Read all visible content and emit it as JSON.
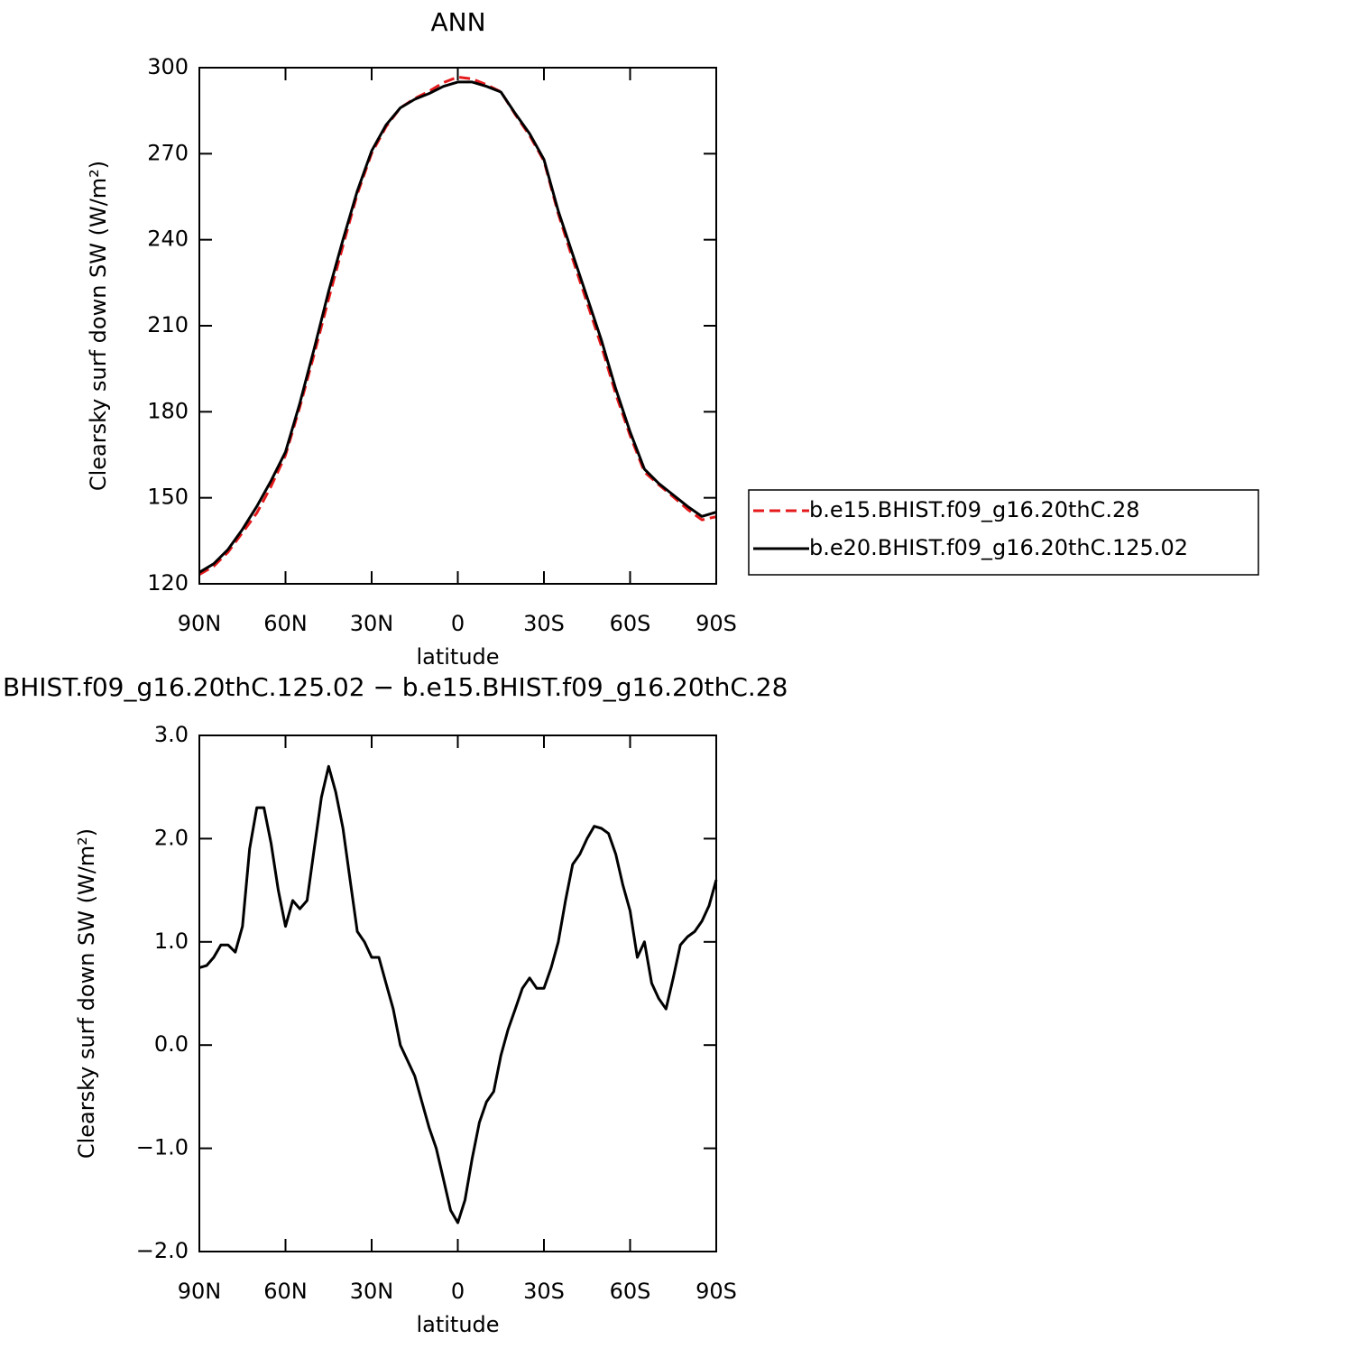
{
  "chart_data": [
    {
      "type": "line",
      "title": "ANN",
      "xlabel": "latitude",
      "ylabel": "Clearsky surf down SW (W/m²)",
      "x": [
        90,
        85,
        80,
        75,
        70,
        65,
        60,
        55,
        50,
        45,
        40,
        35,
        30,
        25,
        20,
        15,
        10,
        5,
        0,
        -5,
        -10,
        -15,
        -20,
        -25,
        -30,
        -35,
        -40,
        -45,
        -50,
        -55,
        -60,
        -65,
        -70,
        -75,
        -80,
        -85,
        -90
      ],
      "series": [
        {
          "name": "b.e15.BHIST.f09_g16.20thC.28",
          "color": "#e41a1c",
          "dash": true,
          "values": [
            123.25,
            126.15,
            131.03,
            137.85,
            144.7,
            154.05,
            164.85,
            181.68,
            200.1,
            219.3,
            237.9,
            255.9,
            270.15,
            279.4,
            286,
            289.3,
            291.8,
            294.8,
            296.72,
            296.1,
            294.05,
            291.6,
            283.65,
            276.35,
            267.45,
            249,
            233.25,
            218,
            202.9,
            186.15,
            171.7,
            159,
            154.55,
            150.35,
            145.95,
            142.3,
            143.4
          ]
        },
        {
          "name": "b.e20.BHIST.f09_g16.20thC.125.02",
          "color": "#000000",
          "dash": false,
          "values": [
            124,
            127,
            132,
            139,
            147,
            156,
            166,
            183,
            202,
            222,
            240,
            257,
            271,
            280,
            286,
            289,
            291,
            293.5,
            295,
            295,
            293.5,
            291.5,
            284,
            277,
            268,
            250,
            235,
            220,
            205,
            188,
            173,
            160,
            155,
            151,
            147,
            143.5,
            145
          ]
        }
      ],
      "xlim": [
        90,
        -90
      ],
      "xticks": [
        {
          "value": 90,
          "label": "90N"
        },
        {
          "value": 60,
          "label": "60N"
        },
        {
          "value": 30,
          "label": "30N"
        },
        0,
        {
          "value": -30,
          "label": "30S"
        },
        {
          "value": -60,
          "label": "60S"
        },
        {
          "value": -90,
          "label": "90S"
        }
      ],
      "ylim": [
        120,
        300
      ],
      "yticks": [
        120,
        150,
        180,
        210,
        240,
        270,
        300
      ],
      "legend": "right"
    },
    {
      "type": "line",
      "title": "BHIST.f09_g16.20thC.125.02 − b.e15.BHIST.f09_g16.20thC.28",
      "xlabel": "latitude",
      "ylabel": "Clearsky surf down SW (W/m²)",
      "x": [
        90,
        87.5,
        85,
        82.5,
        80,
        77.5,
        75,
        72.5,
        70,
        67.5,
        65,
        62.5,
        60,
        57.5,
        55,
        52.5,
        50,
        47.5,
        45,
        42.5,
        40,
        37.5,
        35,
        32.5,
        30,
        27.5,
        25,
        22.5,
        20,
        17.5,
        15,
        12.5,
        10,
        7.5,
        5,
        2.5,
        0,
        -2.5,
        -5,
        -7.5,
        -10,
        -12.5,
        -15,
        -17.5,
        -20,
        -22.5,
        -25,
        -27.5,
        -30,
        -32.5,
        -35,
        -37.5,
        -40,
        -42.5,
        -45,
        -47.5,
        -50,
        -52.5,
        -55,
        -57.5,
        -60,
        -62.5,
        -65,
        -67.5,
        -70,
        -72.5,
        -75,
        -77.5,
        -80,
        -82.5,
        -85,
        -87.5,
        -90
      ],
      "series": [
        {
          "color": "#000000",
          "dash": false,
          "values": [
            0.75,
            0.77,
            0.85,
            0.97,
            0.97,
            0.9,
            1.15,
            1.9,
            2.3,
            2.3,
            1.95,
            1.5,
            1.15,
            1.4,
            1.32,
            1.4,
            1.9,
            2.4,
            2.7,
            2.45,
            2.1,
            1.6,
            1.1,
            1.0,
            0.85,
            0.85,
            0.6,
            0.35,
            0.0,
            -0.15,
            -0.3,
            -0.55,
            -0.8,
            -1.0,
            -1.3,
            -1.6,
            -1.72,
            -1.5,
            -1.1,
            -0.75,
            -0.55,
            -0.45,
            -0.1,
            0.15,
            0.35,
            0.55,
            0.65,
            0.55,
            0.55,
            0.75,
            1.0,
            1.4,
            1.75,
            1.85,
            2.0,
            2.12,
            2.1,
            2.05,
            1.85,
            1.55,
            1.3,
            0.85,
            1.0,
            0.6,
            0.45,
            0.35,
            0.65,
            0.97,
            1.05,
            1.1,
            1.2,
            1.35,
            1.6
          ]
        }
      ],
      "xlim": [
        90,
        -90
      ],
      "xticks": [
        {
          "value": 90,
          "label": "90N"
        },
        {
          "value": 60,
          "label": "60N"
        },
        {
          "value": 30,
          "label": "30N"
        },
        0,
        {
          "value": -30,
          "label": "30S"
        },
        {
          "value": -60,
          "label": "60S"
        },
        {
          "value": -90,
          "label": "90S"
        }
      ],
      "ylim": [
        -2,
        3
      ],
      "yticks": [
        {
          "value": -2,
          "label": "−2.0"
        },
        {
          "value": -1,
          "label": "−1.0"
        },
        {
          "value": 0,
          "label": "0.0"
        },
        {
          "value": 1,
          "label": "1.0"
        },
        {
          "value": 2,
          "label": "2.0"
        },
        {
          "value": 3,
          "label": "3.0"
        }
      ]
    }
  ]
}
